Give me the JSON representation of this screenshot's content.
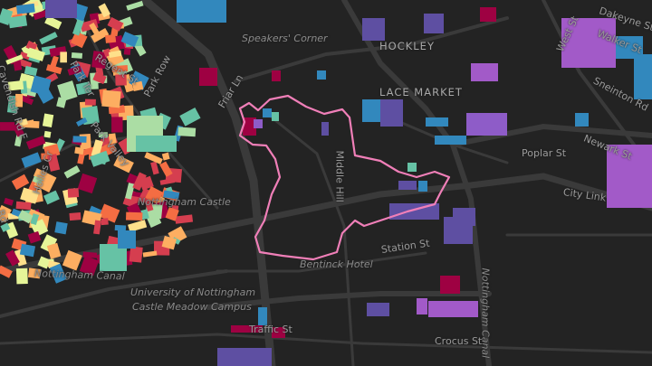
{
  "map": {
    "boundary_color": "#f07fb8",
    "background_color": "#232323",
    "road_color": "#3a3a3a",
    "building_palette": [
      "#9e0142",
      "#d53e4f",
      "#f46d43",
      "#fdae61",
      "#fee08b",
      "#e6f598",
      "#abdda4",
      "#66c2a5",
      "#3288bd",
      "#5e4fa2",
      "#8e5cc8",
      "#a25ac8"
    ],
    "labels": {
      "speakers_corner": "Speakers' Corner",
      "hockley": "HOCKLEY",
      "lace_market": "LACE MARKET",
      "regent_st": "Regent St",
      "park_row": "Park Row",
      "park_ter": "Park Ter",
      "park_valley": "Park Valley",
      "friar_ln": "Friar Ln",
      "cavendish_rd_e": "Cavendish Rd E",
      "cavendish_rd": "Rd",
      "holles_cr": "Holles Cr",
      "middle_hill": "Middle Hill",
      "nottingham_castle": "Nottingham Castle",
      "nottingham_canal": "Nottingham Canal",
      "nottingham_canal_v": "Nottingham Canal",
      "university_1": "University of Nottingham",
      "university_2": "Castle Meadow Campus",
      "bentinck_hotel": "Bentinck Hotel",
      "station_st": "Station St",
      "traffic_st": "Traffic St",
      "crocus_st": "Crocus St",
      "city_link": "City Link",
      "poplar_st": "Poplar St",
      "newark_st": "Newark St",
      "sneinton_rd": "Sneinton Rd",
      "walker_st": "Walker St",
      "dakeyne_st": "Dakeyne St",
      "west_st": "West St"
    }
  }
}
